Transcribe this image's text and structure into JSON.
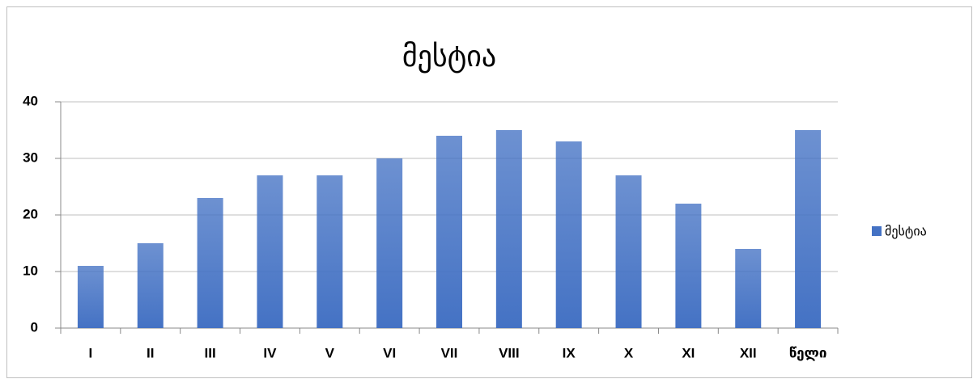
{
  "chart_data": {
    "type": "bar",
    "title": "მესტია",
    "categories": [
      "I",
      "II",
      "III",
      "IV",
      "V",
      "VI",
      "VII",
      "VIII",
      "IX",
      "X",
      "XI",
      "XII",
      "წელი"
    ],
    "series": [
      {
        "name": "მესტია",
        "color": "#4472c4",
        "values": [
          11,
          15,
          23,
          27,
          27,
          30,
          34,
          35,
          33,
          27,
          22,
          14,
          35
        ]
      }
    ],
    "ylim": [
      0,
      40
    ],
    "yticks": [
      0,
      10,
      20,
      30,
      40
    ],
    "grid": true,
    "legend": "right"
  }
}
